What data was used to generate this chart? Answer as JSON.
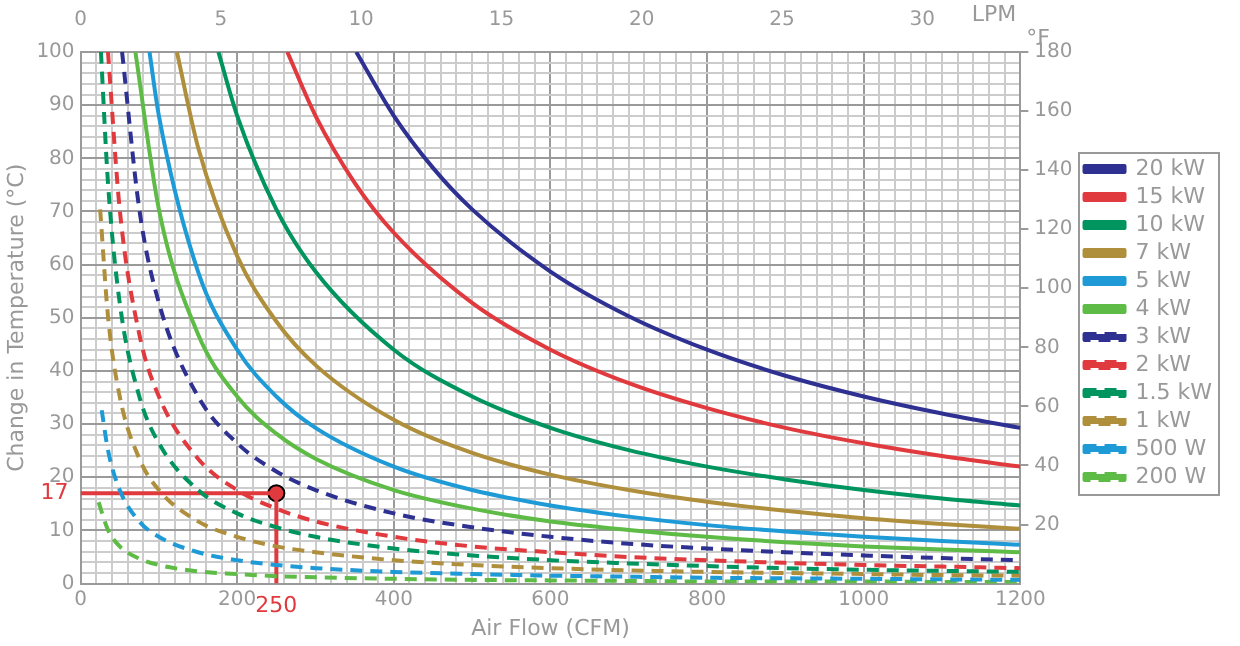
{
  "chart_data": {
    "type": "line",
    "xlabel": "Air Flow (CFM)",
    "ylabel": "Change in Temperature (°C)",
    "x2label": "LPM",
    "y2label": "°F",
    "xlim": [
      0,
      1200
    ],
    "ylim": [
      0,
      100
    ],
    "x2lim": [
      0,
      33.5
    ],
    "y2lim": [
      0,
      180
    ],
    "xticks": [
      0,
      {
        "value": 20,
        "label": null
      },
      {
        "value": 40,
        "label": null
      },
      {
        "value": 60,
        "label": null
      },
      {
        "value": 80,
        "label": null
      },
      {
        "value": 100,
        "label": null
      },
      {
        "value": 120,
        "label": null
      },
      {
        "value": 140,
        "label": null
      },
      {
        "value": 160,
        "label": null
      },
      {
        "value": 180,
        "label": null
      },
      200,
      {
        "value": 220,
        "label": null
      },
      {
        "value": 240,
        "label": null
      },
      {
        "value": 260,
        "label": null
      },
      {
        "value": 280,
        "label": null
      },
      {
        "value": 300,
        "label": null
      },
      {
        "value": 320,
        "label": null
      },
      {
        "value": 340,
        "label": null
      },
      {
        "value": 360,
        "label": null
      },
      {
        "value": 380,
        "label": null
      },
      400,
      {
        "value": 420,
        "label": null
      },
      {
        "value": 440,
        "label": null
      },
      {
        "value": 460,
        "label": null
      },
      {
        "value": 480,
        "label": null
      },
      {
        "value": 500,
        "label": null
      },
      {
        "value": 520,
        "label": null
      },
      {
        "value": 540,
        "label": null
      },
      {
        "value": 560,
        "label": null
      },
      {
        "value": 580,
        "label": null
      },
      600,
      {
        "value": 620,
        "label": null
      },
      {
        "value": 640,
        "label": null
      },
      {
        "value": 660,
        "label": null
      },
      {
        "value": 680,
        "label": null
      },
      {
        "value": 700,
        "label": null
      },
      {
        "value": 720,
        "label": null
      },
      {
        "value": 740,
        "label": null
      },
      {
        "value": 760,
        "label": null
      },
      {
        "value": 780,
        "label": null
      },
      800,
      {
        "value": 820,
        "label": null
      },
      {
        "value": 840,
        "label": null
      },
      {
        "value": 860,
        "label": null
      },
      {
        "value": 880,
        "label": null
      },
      {
        "value": 900,
        "label": null
      },
      {
        "value": 920,
        "label": null
      },
      {
        "value": 940,
        "label": null
      },
      {
        "value": 960,
        "label": null
      },
      {
        "value": 980,
        "label": null
      },
      1000,
      {
        "value": 1020,
        "label": null
      },
      {
        "value": 1040,
        "label": null
      },
      {
        "value": 1060,
        "label": null
      },
      {
        "value": 1080,
        "label": null
      },
      {
        "value": 1100,
        "label": null
      },
      {
        "value": 1120,
        "label": null
      },
      {
        "value": 1140,
        "label": null
      },
      {
        "value": 1160,
        "label": null
      },
      {
        "value": 1180,
        "label": null
      },
      1200
    ],
    "yticks": [
      0,
      {
        "value": 2,
        "label": null
      },
      {
        "value": 4,
        "label": null
      },
      {
        "value": 6,
        "label": null
      },
      {
        "value": 8,
        "label": null
      },
      10,
      {
        "value": 12,
        "label": null
      },
      {
        "value": 14,
        "label": null
      },
      {
        "value": 16,
        "label": null
      },
      {
        "value": 18,
        "label": null
      },
      20,
      {
        "value": 22,
        "label": null
      },
      {
        "value": 24,
        "label": null
      },
      {
        "value": 26,
        "label": null
      },
      {
        "value": 28,
        "label": null
      },
      30,
      {
        "value": 32,
        "label": null
      },
      {
        "value": 34,
        "label": null
      },
      {
        "value": 36,
        "label": null
      },
      {
        "value": 38,
        "label": null
      },
      40,
      {
        "value": 42,
        "label": null
      },
      {
        "value": 44,
        "label": null
      },
      {
        "value": 46,
        "label": null
      },
      {
        "value": 48,
        "label": null
      },
      50,
      {
        "value": 52,
        "label": null
      },
      {
        "value": 54,
        "label": null
      },
      {
        "value": 56,
        "label": null
      },
      {
        "value": 58,
        "label": null
      },
      60,
      {
        "value": 62,
        "label": null
      },
      {
        "value": 64,
        "label": null
      },
      {
        "value": 66,
        "label": null
      },
      {
        "value": 68,
        "label": null
      },
      70,
      {
        "value": 72,
        "label": null
      },
      {
        "value": 74,
        "label": null
      },
      {
        "value": 76,
        "label": null
      },
      {
        "value": 78,
        "label": null
      },
      80,
      {
        "value": 82,
        "label": null
      },
      {
        "value": 84,
        "label": null
      },
      {
        "value": 86,
        "label": null
      },
      {
        "value": 88,
        "label": null
      },
      90,
      {
        "value": 92,
        "label": null
      },
      {
        "value": 94,
        "label": null
      },
      {
        "value": 96,
        "label": null
      },
      {
        "value": 98,
        "label": null
      },
      100
    ],
    "x2ticks": [
      0,
      5,
      10,
      15,
      20,
      25,
      30
    ],
    "y2ticks": [
      20,
      40,
      60,
      80,
      100,
      120,
      140,
      160,
      180
    ],
    "grid": true,
    "legend": "right",
    "marker": "none",
    "line_style": "solid",
    "series": [
      {
        "name": "20 kW",
        "color": "#2e3192",
        "x": [
          352,
          400,
          450,
          500,
          600,
          700,
          800,
          900,
          1000,
          1100,
          1200
        ],
        "values": [
          100,
          88,
          78.2,
          70.4,
          58.7,
          50.3,
          44,
          39.1,
          35.2,
          32,
          29.3
        ]
      },
      {
        "name": "15 kW",
        "color": "#e03a3e",
        "x": [
          264,
          300,
          350,
          400,
          500,
          600,
          700,
          800,
          900,
          1000,
          1100,
          1200
        ],
        "values": [
          100,
          88,
          75.4,
          66,
          52.8,
          44,
          37.7,
          33,
          29.3,
          26.4,
          24,
          22
        ]
      },
      {
        "name": "10 kW",
        "color": "#00945e",
        "x": [
          176,
          200,
          250,
          300,
          400,
          500,
          600,
          700,
          800,
          900,
          1000,
          1100,
          1200
        ],
        "values": [
          100,
          88,
          70.4,
          58.7,
          44,
          35.2,
          29.3,
          25.1,
          22,
          19.6,
          17.6,
          16,
          14.7
        ]
      },
      {
        "name": "7 kW",
        "color": "#b08f3c",
        "x": [
          123,
          150,
          200,
          250,
          300,
          400,
          500,
          600,
          700,
          800,
          900,
          1000,
          1100,
          1200
        ],
        "values": [
          100,
          82.1,
          61.6,
          49.3,
          41.1,
          30.8,
          24.6,
          20.5,
          17.6,
          15.4,
          13.7,
          12.3,
          11.2,
          10.3
        ]
      },
      {
        "name": "5 kW",
        "color": "#1e9ad6",
        "x": [
          88,
          100,
          150,
          200,
          250,
          300,
          400,
          500,
          600,
          700,
          800,
          900,
          1000,
          1100,
          1200
        ],
        "values": [
          100,
          88,
          58.7,
          44,
          35.2,
          29.3,
          22,
          17.6,
          14.7,
          12.6,
          11,
          9.8,
          8.8,
          8,
          7.3
        ]
      },
      {
        "name": "4 kW",
        "color": "#5dbb46",
        "x": [
          70,
          100,
          150,
          200,
          250,
          300,
          400,
          500,
          600,
          700,
          800,
          900,
          1000,
          1100,
          1200
        ],
        "values": [
          100,
          70.4,
          46.9,
          35.2,
          28.2,
          23.5,
          17.6,
          14.1,
          11.7,
          10.1,
          8.8,
          7.8,
          7,
          6.4,
          5.9
        ]
      },
      {
        "name": "3 kW",
        "color": "#2e3192",
        "line_style": "dashed",
        "x": [
          53,
          75,
          100,
          150,
          200,
          250,
          300,
          400,
          500,
          600,
          700,
          800,
          900,
          1000,
          1100,
          1200
        ],
        "values": [
          100,
          70.4,
          52.8,
          35.2,
          26.4,
          21.1,
          17.6,
          13.2,
          10.6,
          8.8,
          7.5,
          6.6,
          5.9,
          5.3,
          4.8,
          4.4
        ]
      },
      {
        "name": "2 kW",
        "color": "#e03a3e",
        "line_style": "dashed",
        "x": [
          35,
          50,
          75,
          100,
          150,
          200,
          250,
          300,
          400,
          500,
          600,
          700,
          800,
          900,
          1000,
          1100,
          1200
        ],
        "values": [
          100,
          70.4,
          46.9,
          35.2,
          23.5,
          17.6,
          14.1,
          11.7,
          8.8,
          7,
          5.9,
          5,
          4.4,
          3.9,
          3.5,
          3.2,
          2.9
        ]
      },
      {
        "name": "1.5 kW",
        "color": "#00945e",
        "line_style": "dashed",
        "x": [
          26,
          35,
          50,
          75,
          100,
          150,
          200,
          250,
          300,
          400,
          500,
          600,
          700,
          800,
          900,
          1000,
          1100,
          1200
        ],
        "values": [
          100,
          75.4,
          52.8,
          35.2,
          26.4,
          17.6,
          13.2,
          10.6,
          8.8,
          6.6,
          5.3,
          4.4,
          3.8,
          3.3,
          2.9,
          2.6,
          2.4,
          2.2
        ]
      },
      {
        "name": "1 kW",
        "color": "#b08f3c",
        "line_style": "dashed",
        "x": [
          25,
          35,
          50,
          75,
          100,
          150,
          200,
          250,
          300,
          400,
          500,
          600,
          700,
          800,
          900,
          1000,
          1100,
          1200
        ],
        "values": [
          70.4,
          50.3,
          35.2,
          23.5,
          17.6,
          11.7,
          8.8,
          7,
          5.9,
          4.4,
          3.5,
          2.9,
          2.5,
          2.2,
          2,
          1.8,
          1.6,
          1.5
        ]
      },
      {
        "name": "500 W",
        "color": "#1e9ad6",
        "line_style": "dashed",
        "x": [
          27,
          35,
          50,
          75,
          100,
          150,
          200,
          250,
          300,
          400,
          500,
          600,
          700,
          800,
          900,
          1000,
          1100,
          1200
        ],
        "values": [
          32.6,
          25.1,
          17.6,
          11.7,
          8.8,
          5.9,
          4.4,
          3.5,
          2.9,
          2.2,
          1.8,
          1.5,
          1.3,
          1.1,
          1,
          0.9,
          0.8,
          0.7
        ]
      },
      {
        "name": "200 W",
        "color": "#5dbb46",
        "line_style": "dashed",
        "x": [
          23,
          35,
          50,
          75,
          100,
          150,
          200,
          250,
          300,
          400,
          500,
          600,
          700,
          800,
          900,
          1000,
          1100,
          1200
        ],
        "values": [
          15.3,
          10.1,
          7,
          4.7,
          3.5,
          2.3,
          1.8,
          1.4,
          1.2,
          0.9,
          0.7,
          0.6,
          0.5,
          0.4,
          0.4,
          0.4,
          0.3,
          0.3
        ]
      },
      {
        "color": "#e03a3e",
        "x": [
          0,
          250,
          250
        ],
        "values": [
          17,
          17,
          0
        ]
      },
      {
        "type": "scatter",
        "color": "#e03a3e",
        "marker": "circle",
        "x": [
          250
        ],
        "values": [
          17
        ]
      }
    ],
    "annotations": [
      {
        "text": "17",
        "x": 0,
        "y": 17
      },
      {
        "text": "250",
        "x": 250,
        "y": 0
      }
    ]
  }
}
